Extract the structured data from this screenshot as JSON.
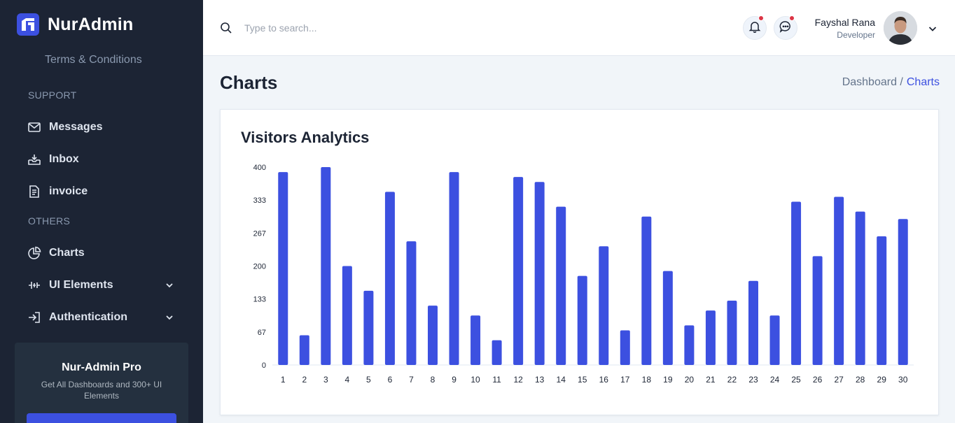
{
  "brand": {
    "name": "NurAdmin"
  },
  "sidebar": {
    "terms_link": "Terms & Conditions",
    "support_title": "SUPPORT",
    "others_title": "OTHERS",
    "items": [
      {
        "label": "Messages",
        "icon": "mail-icon"
      },
      {
        "label": "Inbox",
        "icon": "inbox-icon"
      },
      {
        "label": "invoice",
        "icon": "invoice-icon"
      },
      {
        "label": "Charts",
        "icon": "pie-chart-icon"
      },
      {
        "label": "UI Elements",
        "icon": "sliders-icon"
      },
      {
        "label": "Authentication",
        "icon": "sign-in-icon"
      }
    ],
    "promo": {
      "title": "Nur-Admin Pro",
      "description": "Get All Dashboards and 300+ UI Elements"
    }
  },
  "header": {
    "search_placeholder": "Type to search...",
    "user": {
      "name": "Fayshal Rana",
      "role": "Developer"
    }
  },
  "page": {
    "title": "Charts",
    "breadcrumb": {
      "parent": "Dashboard /",
      "current": "Charts"
    }
  },
  "card": {
    "title": "Visitors Analytics"
  },
  "colors": {
    "accent": "#3c50e0",
    "bar": "#3c50e0",
    "sidebar_bg": "#1c2434"
  },
  "chart_data": {
    "type": "bar",
    "categories": [
      "1",
      "2",
      "3",
      "4",
      "5",
      "6",
      "7",
      "8",
      "9",
      "10",
      "11",
      "12",
      "13",
      "14",
      "15",
      "16",
      "17",
      "18",
      "19",
      "20",
      "21",
      "22",
      "23",
      "24",
      "25",
      "26",
      "27",
      "28",
      "29",
      "30"
    ],
    "values": [
      390,
      60,
      400,
      200,
      150,
      350,
      250,
      120,
      390,
      100,
      50,
      380,
      370,
      320,
      180,
      240,
      70,
      300,
      190,
      80,
      110,
      130,
      170,
      100,
      330,
      220,
      340,
      310,
      260,
      295
    ],
    "yticks": [
      "0",
      "67",
      "133",
      "200",
      "267",
      "333",
      "400"
    ],
    "ylim": [
      0,
      400
    ],
    "grid": false
  }
}
